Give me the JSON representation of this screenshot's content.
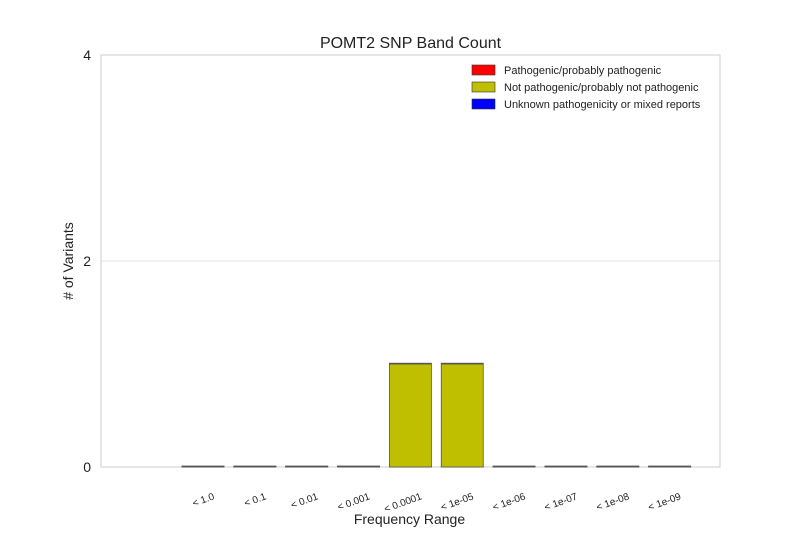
{
  "chart_data": {
    "type": "bar",
    "title": "POMT2 SNP Band Count",
    "xlabel": "Frequency Range",
    "ylabel": "# of Variants",
    "categories": [
      "< 1.0",
      "< 0.1",
      "< 0.01",
      "< 0.001",
      "< 0.0001",
      "< 1e-05",
      "< 1e-06",
      "< 1e-07",
      "< 1e-08",
      "< 1e-09"
    ],
    "series": [
      {
        "name": "Pathogenic/probably pathogenic",
        "color": "#ff0000",
        "values": [
          0,
          0,
          0,
          0,
          0,
          0,
          0,
          0,
          0,
          0
        ]
      },
      {
        "name": "Not pathogenic/probably not pathogenic",
        "color": "#bfbf00",
        "values": [
          0,
          0,
          0,
          0,
          1,
          1,
          0,
          0,
          0,
          0
        ]
      },
      {
        "name": "Unknown pathogenicity or mixed reports",
        "color": "#0000ff",
        "values": [
          0,
          0,
          0,
          0,
          0,
          0,
          0,
          0,
          0,
          0
        ]
      }
    ],
    "stacked": true,
    "ylim": [
      0,
      4
    ],
    "yticks": [
      0,
      2,
      4
    ],
    "grid": "horizontal",
    "legend_position": "top-right"
  }
}
